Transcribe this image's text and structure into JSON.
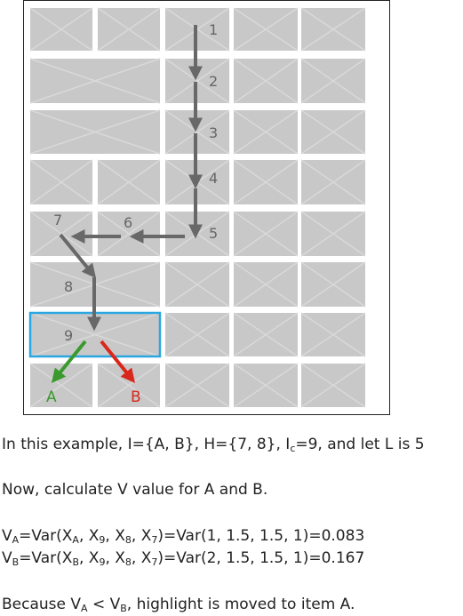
{
  "diagram": {
    "step_labels": [
      "1",
      "2",
      "3",
      "4",
      "5",
      "6",
      "7",
      "8",
      "9"
    ],
    "branch_a_label": "A",
    "branch_b_label": "B",
    "colors": {
      "tile": "#c8c8c8",
      "tile_cross": "#d9d9d9",
      "path_arrow": "#686868",
      "highlight_border": "#2aa7e0",
      "branch_a": "#3a9a2e",
      "branch_b": "#d9271c",
      "frame": "#222222"
    }
  },
  "text": {
    "line1": {
      "prefix": "In this example, I={A, B}, H={7, 8}, I",
      "sub": "c",
      "suffix": "=9, and let L is 5"
    },
    "line2": "Now, calculate V value for A and B.",
    "line3": {
      "v": "V",
      "v_sub": "A",
      "mid": "=Var(X",
      "x1_sub": "A",
      "c1": ", X",
      "x2_sub": "9",
      "c2": ", X",
      "x3_sub": "8",
      "c3": ", X",
      "x4_sub": "7",
      "tail": ")=Var(1, 1.5, 1.5, 1)=0.083"
    },
    "line4": {
      "v": "V",
      "v_sub": "B",
      "mid": "=Var(X",
      "x1_sub": "B",
      "c1": ", X",
      "x2_sub": "9",
      "c2": ", X",
      "x3_sub": "8",
      "c3": ", X",
      "x4_sub": "7",
      "tail": ")=Var(2, 1.5, 1.5, 1)=0.167"
    },
    "line5": {
      "prefix": "Because V",
      "sub1": "A",
      "mid": " < V",
      "sub2": "B",
      "suffix": ", highlight is moved to item A."
    }
  }
}
